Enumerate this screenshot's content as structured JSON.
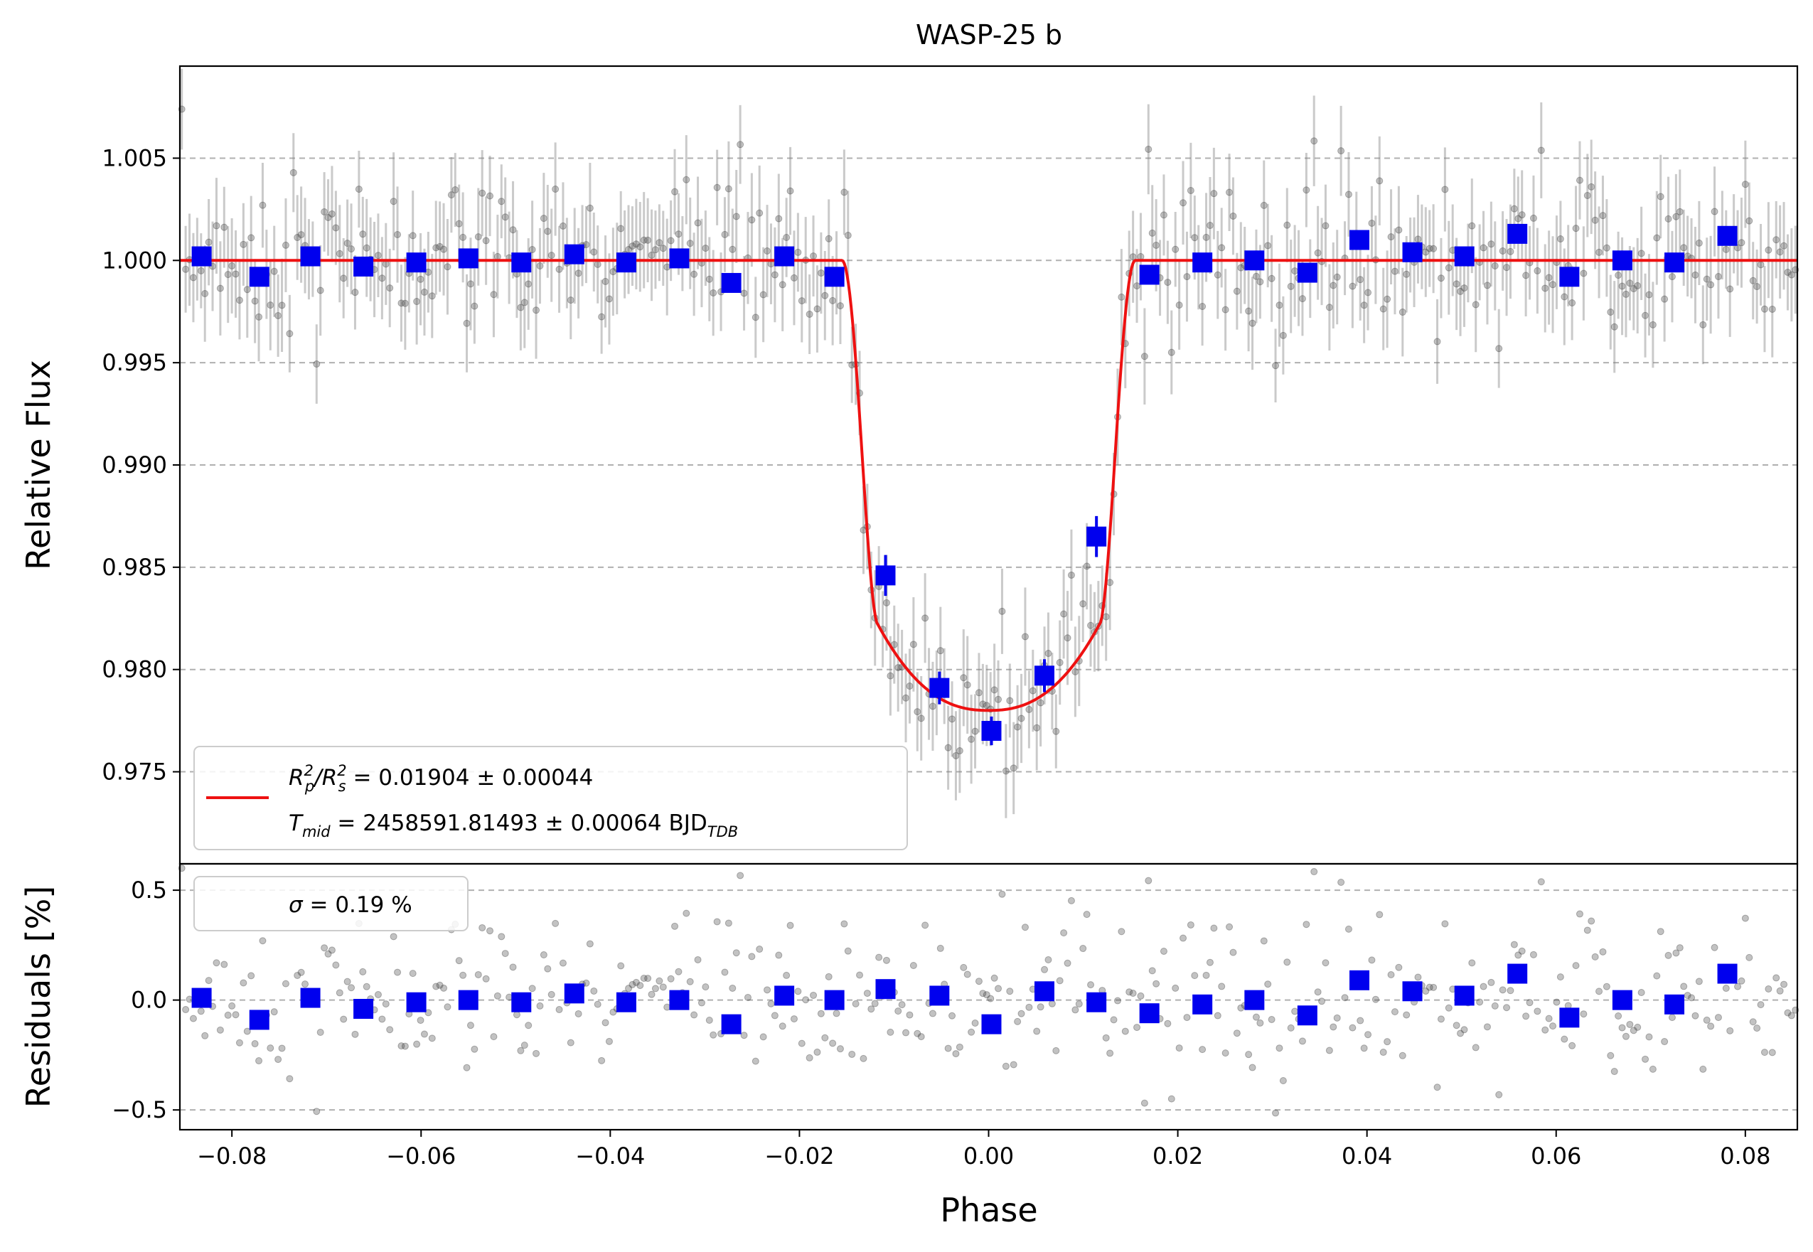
{
  "chart_data": [
    {
      "type": "scatter",
      "panel": "transit",
      "title": "WASP-25 b",
      "xlabel": "Phase",
      "ylabel": "Relative Flux",
      "xlim": [
        -0.0855,
        0.0855
      ],
      "ylim": [
        0.9705,
        1.0095
      ],
      "yticks": [
        0.975,
        0.98,
        0.985,
        0.99,
        0.995,
        1.0,
        1.005
      ],
      "ytick_labels": [
        "0.975",
        "0.980",
        "0.985",
        "0.990",
        "0.995",
        "1.000",
        "1.005"
      ],
      "grid": "horizontal dashed",
      "legend": {
        "placement": "lower-left",
        "line1": {
          "sym": "R",
          "sub1": "p",
          "sup1": "2",
          "sym2": "R",
          "sub2": "s",
          "sup2": "2",
          "text": " = 0.01904 ± 0.00044"
        },
        "line2": {
          "sym": "T",
          "sub": "mid",
          "text": " = 2458591.81493 ± 0.00064 BJD",
          "unit_sub": "TDB"
        }
      },
      "model": {
        "name": "Transit model",
        "color": "#ee1111",
        "depth": 0.022,
        "t1": 0.0155,
        "t2": 0.0117,
        "ingress_shift": 0.0014
      },
      "raw_points": {
        "color": "#404040",
        "count": 420,
        "scatter": 0.0019,
        "err": 0.002,
        "seed": 7
      },
      "binned": {
        "color": "#0000ee",
        "x": [
          -0.0832,
          -0.0771,
          -0.0717,
          -0.0661,
          -0.0605,
          -0.055,
          -0.0494,
          -0.0438,
          -0.0383,
          -0.0327,
          -0.0272,
          -0.0216,
          -0.0163,
          -0.0109,
          -0.0052,
          0.0003,
          0.0059,
          0.0114,
          0.017,
          0.0226,
          0.0281,
          0.0337,
          0.0392,
          0.0448,
          0.0503,
          0.0559,
          0.0614,
          0.067,
          0.0725,
          0.0781
        ],
        "y": [
          1.0002,
          0.9992,
          1.0002,
          0.9997,
          0.9999,
          1.0001,
          0.9999,
          1.0003,
          0.9999,
          1.0001,
          0.9989,
          1.0002,
          0.9992,
          0.9846,
          0.9791,
          0.977,
          0.9797,
          0.9865,
          0.9993,
          0.9999,
          1.0,
          0.9994,
          1.001,
          1.0004,
          1.0002,
          1.0013,
          0.9992,
          1.0,
          0.9999,
          1.0012
        ],
        "err": [
          0.0004,
          0.0004,
          0.0004,
          0.0004,
          0.0004,
          0.0004,
          0.0004,
          0.0004,
          0.0004,
          0.0004,
          0.0004,
          0.0004,
          0.0004,
          0.001,
          0.0008,
          0.0007,
          0.0008,
          0.001,
          0.0004,
          0.0004,
          0.0004,
          0.0004,
          0.0004,
          0.0004,
          0.0004,
          0.0004,
          0.0004,
          0.0004,
          0.0004,
          0.0004
        ]
      }
    },
    {
      "type": "scatter",
      "panel": "residuals",
      "xlabel": "Phase",
      "ylabel": "Residuals [%]",
      "xlim": [
        -0.0855,
        0.0855
      ],
      "ylim": [
        -0.59,
        0.62
      ],
      "yticks": [
        -0.5,
        0.0,
        0.5
      ],
      "ytick_labels": [
        "−0.5",
        "0.0",
        "0.5"
      ],
      "xticks": [
        -0.08,
        -0.06,
        -0.04,
        -0.02,
        0.0,
        0.02,
        0.04,
        0.06,
        0.08
      ],
      "xtick_labels": [
        "−0.08",
        "−0.06",
        "−0.04",
        "−0.02",
        "0.00",
        "0.02",
        "0.04",
        "0.06",
        "0.08"
      ],
      "legend": {
        "placement": "top-left",
        "sym": "σ",
        "text": " = 0.19 %"
      },
      "binned_residuals": [
        0.01,
        -0.09,
        0.01,
        -0.04,
        -0.01,
        0.0,
        -0.01,
        0.03,
        -0.01,
        0.0,
        -0.11,
        0.02,
        0.0,
        0.05,
        0.02,
        -0.11,
        0.04,
        -0.01,
        -0.06,
        -0.02,
        0.0,
        -0.07,
        0.09,
        0.04,
        0.02,
        0.12,
        -0.08,
        0.0,
        -0.02,
        0.12
      ]
    }
  ]
}
